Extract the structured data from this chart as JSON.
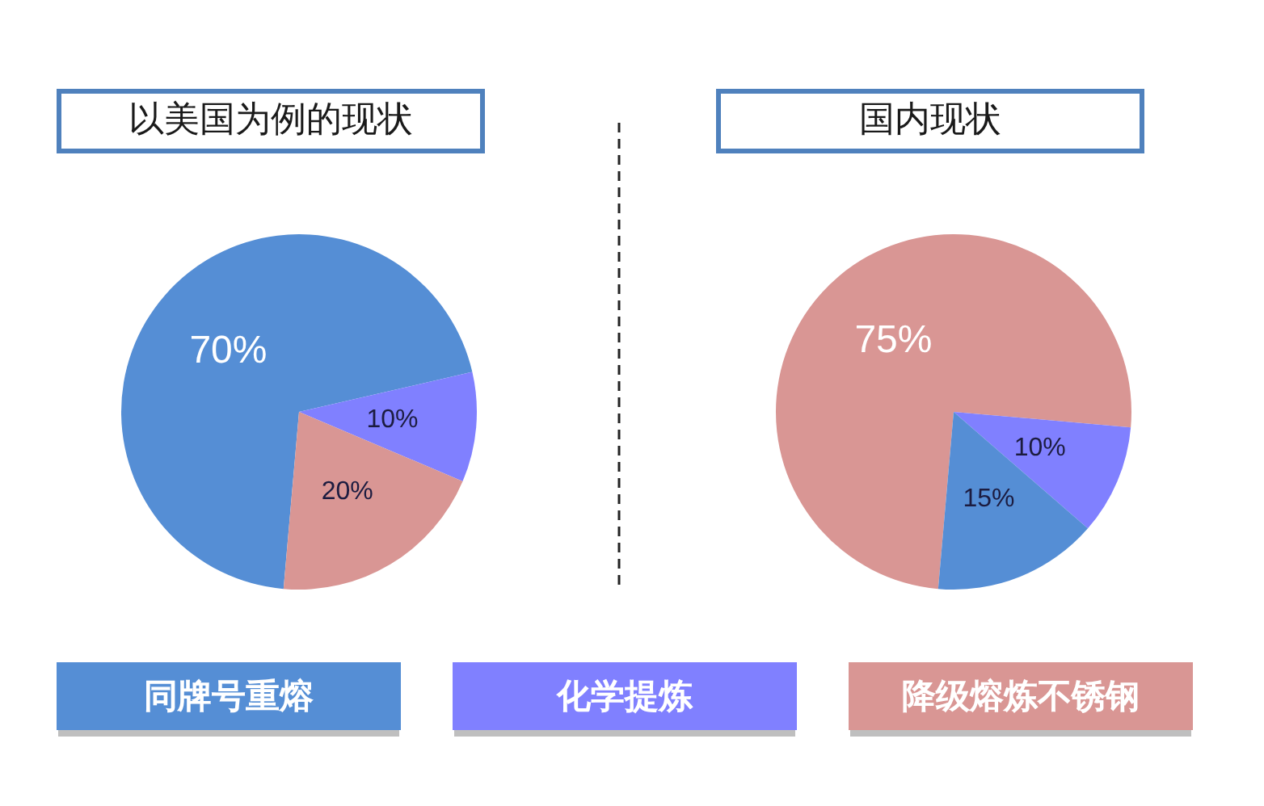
{
  "chart_data": [
    {
      "type": "pie",
      "title": "以美国为例的现状",
      "categories": [
        "同牌号重熔",
        "化学提炼",
        "降级熔炼不锈钢"
      ],
      "values": [
        70,
        10,
        20
      ],
      "colors": [
        "#558ed5",
        "#8080ff",
        "#d99694"
      ],
      "value_labels": [
        "70%",
        "10%",
        "20%"
      ],
      "legend": "bottom"
    },
    {
      "type": "pie",
      "title": "国内现状",
      "categories": [
        null,
        null,
        null
      ],
      "values": [
        75,
        10,
        15
      ],
      "colors": [
        "#d99694",
        "#8080ff",
        "#558ed5"
      ],
      "value_labels": [
        "75%",
        "10%",
        "15%"
      ]
    }
  ]
}
